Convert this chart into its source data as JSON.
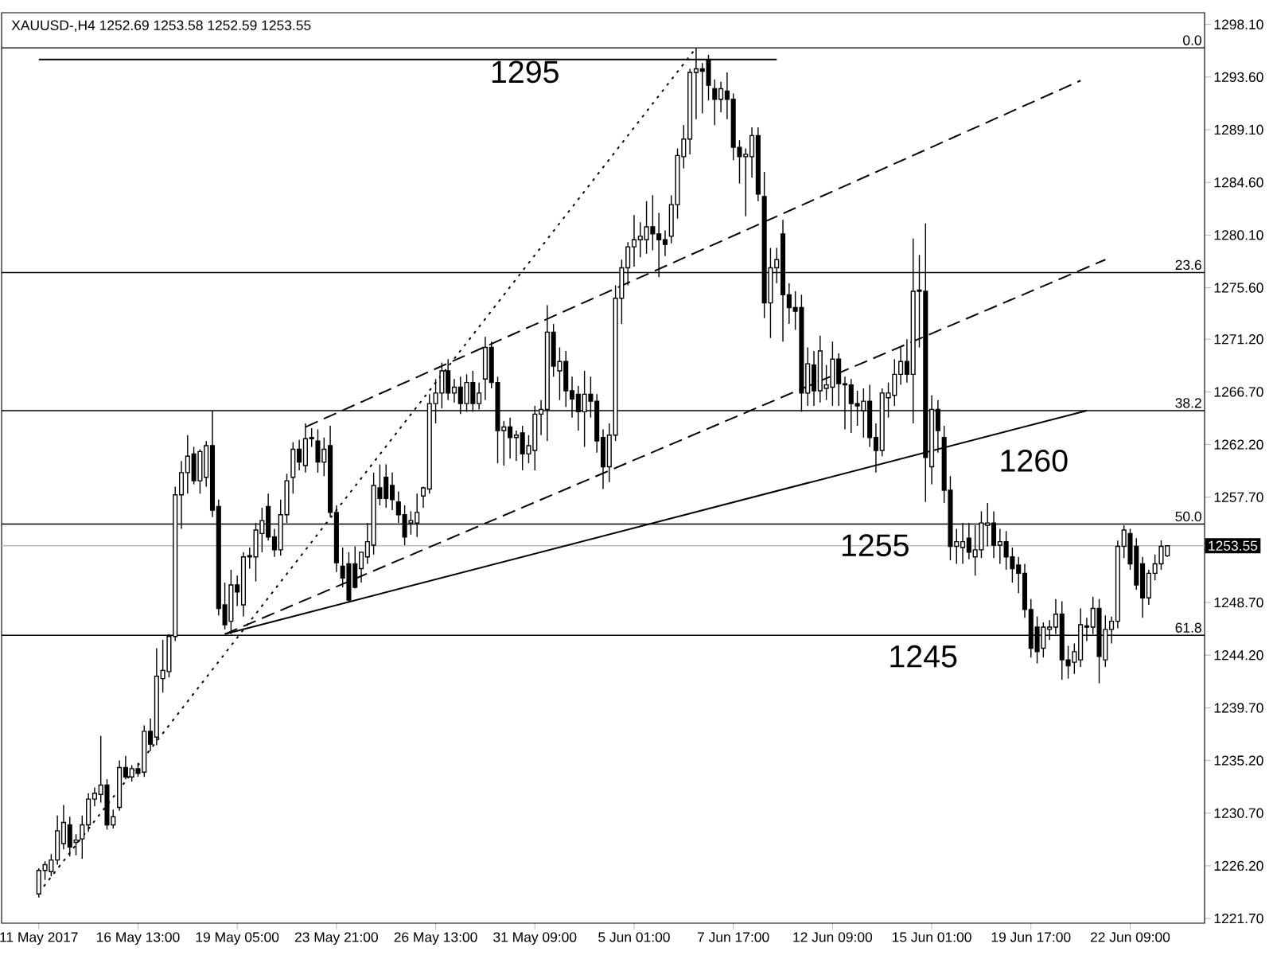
{
  "chart_data": {
    "type": "candlestick",
    "title": "XAUUSD-,H4  1252.69 1253.58 1252.59 1253.55",
    "color": "#000000",
    "ylim": [
      1221.3,
      1299.1
    ],
    "categories": [
      "11 May 2017",
      null,
      null,
      null,
      null,
      null,
      null,
      null,
      null,
      null,
      null,
      null,
      null,
      null,
      null,
      null,
      "16 May 13:00",
      null,
      null,
      null,
      null,
      null,
      null,
      null,
      null,
      null,
      null,
      null,
      null,
      null,
      null,
      null,
      "19 May 05:00",
      null,
      null,
      null,
      null,
      null,
      null,
      null,
      null,
      null,
      null,
      null,
      null,
      null,
      null,
      null,
      "23 May 21:00",
      null,
      null,
      null,
      null,
      null,
      null,
      null,
      null,
      null,
      null,
      null,
      null,
      null,
      null,
      null,
      "26 May 13:00",
      null,
      null,
      null,
      null,
      null,
      null,
      null,
      null,
      null,
      null,
      null,
      null,
      null,
      null,
      null,
      "31 May 09:00",
      null,
      null,
      null,
      null,
      null,
      null,
      null,
      null,
      null,
      null,
      null,
      null,
      null,
      null,
      null,
      "5 Jun 01:00",
      null,
      null,
      null,
      null,
      null,
      null,
      null,
      null,
      null,
      null,
      null,
      null,
      null,
      null,
      null,
      "7 Jun 17:00",
      null,
      null,
      null,
      null,
      null,
      null,
      null,
      null,
      null,
      null,
      null,
      null,
      null,
      null,
      null,
      "12 Jun 09:00",
      null,
      null,
      null,
      null,
      null,
      null,
      null,
      null,
      null,
      null,
      null,
      null,
      null,
      null,
      null,
      "15 Jun 01:00",
      null,
      null,
      null,
      null,
      null,
      null,
      null,
      null,
      null,
      null,
      null,
      null,
      null,
      null,
      null,
      "19 Jun 17:00",
      null,
      null,
      null,
      null,
      null,
      null,
      null,
      null,
      null,
      null,
      null,
      null,
      null,
      null,
      null,
      "22 Jun 09:00",
      null,
      null,
      null,
      null,
      null,
      null
    ],
    "yticks": [
      {
        "value": 1298.1,
        "label": "1298.10"
      },
      {
        "value": 1293.6,
        "label": "1293.60"
      },
      {
        "value": 1289.1,
        "label": "1289.10"
      },
      {
        "value": 1284.6,
        "label": "1284.60"
      },
      {
        "value": 1280.1,
        "label": "1280.10"
      },
      {
        "value": 1275.6,
        "label": "1275.60"
      },
      {
        "value": 1271.2,
        "label": "1271.20"
      },
      {
        "value": 1266.7,
        "label": "1266.70"
      },
      {
        "value": 1262.2,
        "label": "1262.20"
      },
      {
        "value": 1257.7,
        "label": "1257.70"
      },
      {
        "value": 1248.7,
        "label": "1248.70"
      },
      {
        "value": 1244.2,
        "label": "1244.20"
      },
      {
        "value": 1239.7,
        "label": "1239.70"
      },
      {
        "value": 1235.2,
        "label": "1235.20"
      },
      {
        "value": 1230.7,
        "label": "1230.70"
      },
      {
        "value": 1226.2,
        "label": "1226.20"
      },
      {
        "value": 1221.7,
        "label": "1221.70"
      }
    ],
    "ohlc": [
      [
        1223.8,
        1226.0,
        1223.5,
        1225.8
      ],
      [
        1225.8,
        1226.6,
        1225.0,
        1226.3
      ],
      [
        1225.7,
        1227.2,
        1225.3,
        1226.7
      ],
      [
        1226.7,
        1230.5,
        1226.3,
        1229.2
      ],
      [
        1228.1,
        1231.4,
        1227.6,
        1229.9
      ],
      [
        1229.7,
        1230.4,
        1227.0,
        1227.8
      ],
      [
        1228.2,
        1228.9,
        1227.1,
        1228.4
      ],
      [
        1228.5,
        1230.5,
        1226.8,
        1229.7
      ],
      [
        1229.7,
        1232.4,
        1229.1,
        1231.9
      ],
      [
        1231.9,
        1232.9,
        1231.3,
        1232.4
      ],
      [
        1232.3,
        1237.3,
        1231.6,
        1233.1
      ],
      [
        1233.1,
        1233.6,
        1229.3,
        1229.7
      ],
      [
        1229.7,
        1231.0,
        1229.4,
        1230.4
      ],
      [
        1231.2,
        1235.2,
        1230.9,
        1234.6
      ],
      [
        1234.6,
        1235.6,
        1233.6,
        1233.8
      ],
      [
        1233.8,
        1234.8,
        1233.4,
        1234.5
      ],
      [
        1234.5,
        1235.0,
        1233.8,
        1234.1
      ],
      [
        1234.2,
        1238.2,
        1233.8,
        1237.7
      ],
      [
        1237.7,
        1238.8,
        1236.0,
        1236.6
      ],
      [
        1237.2,
        1244.8,
        1236.5,
        1242.4
      ],
      [
        1242.2,
        1245.5,
        1241.0,
        1242.9
      ],
      [
        1242.8,
        1246.0,
        1242.3,
        1245.8
      ],
      [
        1245.8,
        1258.6,
        1245.4,
        1257.9
      ],
      [
        1257.9,
        1260.8,
        1255.0,
        1259.8
      ],
      [
        1259.8,
        1263.0,
        1258.0,
        1261.2
      ],
      [
        1261.4,
        1262.0,
        1258.8,
        1259.1
      ],
      [
        1259.1,
        1261.8,
        1258.0,
        1261.6
      ],
      [
        1259.4,
        1262.5,
        1258.6,
        1262.1
      ],
      [
        1262.1,
        1265.1,
        1256.0,
        1256.6
      ],
      [
        1256.9,
        1257.5,
        1247.6,
        1248.2
      ],
      [
        1248.5,
        1250.4,
        1246.4,
        1246.8
      ],
      [
        1247.1,
        1251.5,
        1246.0,
        1250.2
      ],
      [
        1250.2,
        1251.0,
        1248.4,
        1249.6
      ],
      [
        1248.5,
        1253.0,
        1247.5,
        1252.6
      ],
      [
        1252.6,
        1253.4,
        1251.6,
        1252.7
      ],
      [
        1252.6,
        1255.5,
        1250.5,
        1254.9
      ],
      [
        1254.6,
        1256.8,
        1253.0,
        1255.7
      ],
      [
        1256.9,
        1258.0,
        1254.0,
        1254.3
      ],
      [
        1254.3,
        1255.0,
        1252.6,
        1253.2
      ],
      [
        1253.2,
        1257.5,
        1252.7,
        1256.2
      ],
      [
        1256.2,
        1259.7,
        1255.5,
        1259.1
      ],
      [
        1259.4,
        1262.4,
        1258.0,
        1261.8
      ],
      [
        1261.8,
        1262.6,
        1260.0,
        1260.7
      ],
      [
        1260.4,
        1264.0,
        1259.8,
        1262.7
      ],
      [
        1262.7,
        1263.6,
        1262.0,
        1262.8
      ],
      [
        1262.5,
        1263.5,
        1259.8,
        1260.7
      ],
      [
        1260.7,
        1262.8,
        1259.5,
        1261.8
      ],
      [
        1262.1,
        1263.8,
        1256.0,
        1256.4
      ],
      [
        1256.4,
        1257.0,
        1251.3,
        1252.1
      ],
      [
        1251.8,
        1253.4,
        1250.0,
        1250.8
      ],
      [
        1252.0,
        1253.0,
        1248.7,
        1248.9
      ],
      [
        1252.0,
        1253.5,
        1249.9,
        1250.0
      ],
      [
        1251.6,
        1253.0,
        1250.4,
        1253.0
      ],
      [
        1252.6,
        1255.5,
        1252.0,
        1253.9
      ],
      [
        1253.6,
        1259.8,
        1252.8,
        1258.7
      ],
      [
        1258.5,
        1260.5,
        1257.0,
        1257.6
      ],
      [
        1259.4,
        1260.5,
        1256.8,
        1257.6
      ],
      [
        1258.7,
        1259.8,
        1256.6,
        1257.5
      ],
      [
        1257.3,
        1258.2,
        1255.5,
        1256.2
      ],
      [
        1256.2,
        1257.0,
        1253.6,
        1254.3
      ],
      [
        1255.5,
        1256.5,
        1254.5,
        1255.7
      ],
      [
        1255.5,
        1258.0,
        1254.3,
        1256.4
      ],
      [
        1257.8,
        1258.6,
        1256.8,
        1258.5
      ],
      [
        1258.4,
        1266.5,
        1258.0,
        1265.7
      ],
      [
        1265.7,
        1267.8,
        1264.0,
        1266.6
      ],
      [
        1266.6,
        1269.2,
        1265.3,
        1268.5
      ],
      [
        1268.5,
        1269.5,
        1266.0,
        1266.6
      ],
      [
        1266.6,
        1267.8,
        1265.8,
        1267.1
      ],
      [
        1267.1,
        1268.0,
        1264.8,
        1265.7
      ],
      [
        1265.7,
        1268.2,
        1265.0,
        1267.5
      ],
      [
        1267.5,
        1268.5,
        1265.0,
        1265.7
      ],
      [
        1265.7,
        1267.5,
        1265.2,
        1266.6
      ],
      [
        1267.8,
        1271.4,
        1266.0,
        1270.5
      ],
      [
        1270.5,
        1271.0,
        1267.0,
        1267.5
      ],
      [
        1267.5,
        1268.0,
        1260.6,
        1263.4
      ],
      [
        1263.4,
        1264.2,
        1260.4,
        1263.7
      ],
      [
        1263.7,
        1264.5,
        1261.0,
        1262.8
      ],
      [
        1262.8,
        1263.4,
        1260.8,
        1263.0
      ],
      [
        1263.2,
        1263.8,
        1260.0,
        1261.4
      ],
      [
        1261.4,
        1263.0,
        1260.6,
        1262.1
      ],
      [
        1261.7,
        1265.5,
        1260.0,
        1264.8
      ],
      [
        1264.8,
        1266.0,
        1263.0,
        1265.2
      ],
      [
        1265.2,
        1274.1,
        1262.5,
        1271.8
      ],
      [
        1271.8,
        1272.5,
        1268.0,
        1268.9
      ],
      [
        1268.5,
        1270.5,
        1266.0,
        1269.3
      ],
      [
        1269.3,
        1270.2,
        1265.4,
        1266.8
      ],
      [
        1266.8,
        1268.0,
        1264.5,
        1266.1
      ],
      [
        1266.5,
        1267.2,
        1263.4,
        1265.0
      ],
      [
        1265.0,
        1268.5,
        1262.0,
        1266.5
      ],
      [
        1266.5,
        1268.0,
        1264.5,
        1265.9
      ],
      [
        1265.9,
        1266.5,
        1261.5,
        1262.5
      ],
      [
        1262.8,
        1263.5,
        1258.4,
        1260.3
      ],
      [
        1260.3,
        1264.0,
        1259.0,
        1263.0
      ],
      [
        1263.0,
        1275.8,
        1262.5,
        1274.7
      ],
      [
        1274.7,
        1278.0,
        1272.5,
        1277.3
      ],
      [
        1277.3,
        1279.5,
        1275.8,
        1279.1
      ],
      [
        1279.1,
        1281.8,
        1277.4,
        1279.7
      ],
      [
        1279.7,
        1281.2,
        1278.2,
        1280.0
      ],
      [
        1279.7,
        1283.0,
        1278.5,
        1280.8
      ],
      [
        1280.8,
        1283.5,
        1278.8,
        1280.2
      ],
      [
        1280.2,
        1282.0,
        1276.5,
        1279.7
      ],
      [
        1279.7,
        1280.5,
        1278.3,
        1279.3
      ],
      [
        1280.0,
        1283.5,
        1279.4,
        1282.7
      ],
      [
        1282.7,
        1287.5,
        1281.5,
        1286.9
      ],
      [
        1286.8,
        1289.5,
        1285.8,
        1288.3
      ],
      [
        1288.3,
        1294.3,
        1287.0,
        1294.0
      ],
      [
        1294.0,
        1296.1,
        1290.0,
        1294.3
      ],
      [
        1294.3,
        1294.8,
        1290.5,
        1294.1
      ],
      [
        1295.1,
        1295.5,
        1291.6,
        1292.9
      ],
      [
        1292.6,
        1293.4,
        1289.5,
        1291.7
      ],
      [
        1291.7,
        1293.2,
        1290.6,
        1292.6
      ],
      [
        1292.4,
        1294.0,
        1290.0,
        1291.7
      ],
      [
        1291.7,
        1292.2,
        1286.5,
        1287.6
      ],
      [
        1287.6,
        1288.2,
        1284.5,
        1286.8
      ],
      [
        1286.8,
        1287.5,
        1281.7,
        1287.0
      ],
      [
        1286.8,
        1289.3,
        1285.0,
        1288.6
      ],
      [
        1288.6,
        1289.3,
        1283.0,
        1283.6
      ],
      [
        1283.4,
        1285.5,
        1273.0,
        1274.3
      ],
      [
        1274.3,
        1279.0,
        1271.3,
        1277.3
      ],
      [
        1277.3,
        1279.0,
        1276.0,
        1278.0
      ],
      [
        1280.2,
        1281.4,
        1271.0,
        1275.0
      ],
      [
        1275.0,
        1276.0,
        1272.5,
        1273.9
      ],
      [
        1273.9,
        1275.3,
        1272.0,
        1273.6
      ],
      [
        1273.9,
        1275.0,
        1265.0,
        1266.6
      ],
      [
        1266.6,
        1270.5,
        1265.5,
        1269.1
      ],
      [
        1269.0,
        1270.2,
        1265.5,
        1266.8
      ],
      [
        1266.8,
        1271.5,
        1265.8,
        1270.2
      ],
      [
        1267.0,
        1269.0,
        1266.0,
        1267.3
      ],
      [
        1267.1,
        1271.0,
        1265.5,
        1269.5
      ],
      [
        1269.5,
        1270.0,
        1265.5,
        1267.4
      ],
      [
        1267.4,
        1268.0,
        1263.5,
        1267.3
      ],
      [
        1267.3,
        1267.8,
        1263.2,
        1265.7
      ],
      [
        1265.7,
        1266.8,
        1263.8,
        1265.5
      ],
      [
        1265.1,
        1267.0,
        1262.8,
        1265.9
      ],
      [
        1265.9,
        1267.3,
        1262.0,
        1262.8
      ],
      [
        1262.8,
        1264.0,
        1259.8,
        1261.7
      ],
      [
        1261.7,
        1267.0,
        1261.2,
        1266.6
      ],
      [
        1266.2,
        1267.5,
        1264.5,
        1266.6
      ],
      [
        1266.4,
        1269.5,
        1265.5,
        1268.2
      ],
      [
        1268.2,
        1270.5,
        1267.3,
        1269.3
      ],
      [
        1269.3,
        1271.2,
        1267.5,
        1268.2
      ],
      [
        1268.2,
        1279.8,
        1264.0,
        1275.3
      ],
      [
        1275.3,
        1278.4,
        1270.5,
        1275.4
      ],
      [
        1275.3,
        1281.1,
        1257.3,
        1261.1
      ],
      [
        1260.3,
        1266.4,
        1258.8,
        1265.2
      ],
      [
        1265.2,
        1266.0,
        1261.5,
        1263.4
      ],
      [
        1262.8,
        1263.8,
        1257.2,
        1258.3
      ],
      [
        1258.3,
        1259.5,
        1252.3,
        1253.5
      ],
      [
        1253.5,
        1255.0,
        1252.0,
        1253.9
      ],
      [
        1253.4,
        1255.5,
        1252.0,
        1253.9
      ],
      [
        1254.2,
        1255.5,
        1252.4,
        1253.0
      ],
      [
        1252.6,
        1255.3,
        1251.0,
        1253.2
      ],
      [
        1253.2,
        1256.5,
        1252.5,
        1255.5
      ],
      [
        1255.3,
        1257.2,
        1253.5,
        1255.5
      ],
      [
        1255.5,
        1256.5,
        1252.5,
        1253.6
      ],
      [
        1253.6,
        1255.0,
        1252.0,
        1253.9
      ],
      [
        1253.9,
        1254.8,
        1251.5,
        1252.6
      ],
      [
        1252.6,
        1253.4,
        1250.4,
        1251.6
      ],
      [
        1251.9,
        1252.6,
        1249.5,
        1251.2
      ],
      [
        1251.2,
        1252.0,
        1247.4,
        1248.1
      ],
      [
        1248.1,
        1249.0,
        1244.0,
        1244.8
      ],
      [
        1246.6,
        1247.5,
        1243.5,
        1244.5
      ],
      [
        1244.8,
        1247.0,
        1244.0,
        1246.6
      ],
      [
        1246.4,
        1247.2,
        1245.5,
        1246.6
      ],
      [
        1246.6,
        1249.0,
        1246.0,
        1247.7
      ],
      [
        1247.7,
        1248.8,
        1242.1,
        1243.8
      ],
      [
        1243.8,
        1245.0,
        1242.2,
        1243.3
      ],
      [
        1243.6,
        1245.2,
        1242.6,
        1244.5
      ],
      [
        1243.8,
        1248.2,
        1243.2,
        1246.8
      ],
      [
        1246.6,
        1247.4,
        1245.4,
        1246.7
      ],
      [
        1246.6,
        1249.2,
        1246.0,
        1248.2
      ],
      [
        1248.2,
        1249.0,
        1241.8,
        1244.1
      ],
      [
        1243.8,
        1247.6,
        1243.2,
        1246.4
      ],
      [
        1246.4,
        1247.5,
        1245.2,
        1247.1
      ],
      [
        1247.1,
        1254.0,
        1246.5,
        1253.5
      ],
      [
        1253.5,
        1255.3,
        1252.5,
        1254.9
      ],
      [
        1254.6,
        1255.0,
        1251.5,
        1252.0
      ],
      [
        1253.5,
        1254.2,
        1249.8,
        1250.2
      ],
      [
        1252.0,
        1252.6,
        1247.4,
        1249.1
      ],
      [
        1249.1,
        1251.5,
        1248.5,
        1251.2
      ],
      [
        1251.2,
        1252.8,
        1250.6,
        1252.0
      ],
      [
        1252.0,
        1254.0,
        1251.5,
        1253.5
      ],
      [
        1252.69,
        1253.58,
        1252.59,
        1253.55
      ]
    ],
    "series": [
      {
        "type": "line",
        "color": "#000000",
        "line_style": "solid",
        "values": [
          1295.1,
          null,
          null,
          null,
          null,
          null,
          null,
          null,
          null,
          null,
          null,
          null,
          null,
          null,
          null,
          null,
          null,
          null,
          null,
          null,
          null,
          null,
          null,
          null,
          null,
          null,
          null,
          null,
          null,
          null,
          null,
          null,
          null,
          null,
          null,
          null,
          null,
          null,
          null,
          null,
          null,
          null,
          null,
          null,
          null,
          null,
          null,
          null,
          null,
          null,
          null,
          null,
          null,
          null,
          null,
          null,
          null,
          null,
          null,
          null,
          null,
          null,
          null,
          null,
          null,
          null,
          null,
          null,
          null,
          null,
          null,
          null,
          null,
          null,
          null,
          null,
          null,
          null,
          null,
          null,
          null,
          null,
          null,
          null,
          null,
          null,
          null,
          null,
          null,
          null,
          null,
          null,
          null,
          null,
          null,
          null,
          null,
          null,
          null,
          null,
          null,
          null,
          null,
          null,
          null,
          null,
          null,
          null,
          null,
          null,
          null,
          null,
          null,
          null,
          null,
          null,
          null,
          null,
          null,
          1295.1,
          null,
          null,
          null,
          null,
          null,
          null,
          null,
          null,
          null,
          null,
          null,
          null,
          null,
          null,
          null,
          null,
          null,
          null,
          null,
          null,
          null,
          null,
          null,
          null,
          null,
          null,
          null,
          null,
          null,
          null,
          null,
          null,
          null,
          null,
          null,
          null,
          null,
          null,
          null,
          null,
          null,
          null,
          null,
          null,
          null,
          null,
          null,
          null,
          null,
          null,
          null,
          null,
          null,
          null,
          null,
          null,
          null,
          null,
          null,
          null,
          null,
          null,
          null
        ]
      },
      {
        "type": "line",
        "color": "#000000",
        "line_style": "solid",
        "values": [
          null,
          null,
          null,
          null,
          null,
          null,
          null,
          null,
          null,
          null,
          null,
          null,
          null,
          null,
          null,
          null,
          null,
          null,
          null,
          null,
          null,
          null,
          null,
          null,
          null,
          null,
          null,
          null,
          null,
          null,
          1246.0,
          null,
          null,
          null,
          null,
          null,
          null,
          null,
          null,
          null,
          null,
          null,
          null,
          null,
          null,
          null,
          null,
          null,
          null,
          null,
          null,
          null,
          null,
          null,
          null,
          null,
          null,
          null,
          null,
          null,
          null,
          null,
          null,
          null,
          null,
          null,
          null,
          null,
          null,
          null,
          null,
          null,
          null,
          null,
          null,
          null,
          null,
          null,
          null,
          null,
          null,
          null,
          null,
          null,
          null,
          null,
          null,
          null,
          null,
          null,
          null,
          null,
          null,
          null,
          null,
          null,
          null,
          null,
          null,
          null,
          null,
          null,
          null,
          null,
          null,
          null,
          null,
          null,
          null,
          null,
          null,
          null,
          null,
          null,
          null,
          null,
          null,
          null,
          null,
          null,
          null,
          null,
          null,
          null,
          null,
          null,
          null,
          null,
          null,
          null,
          null,
          null,
          null,
          null,
          null,
          null,
          null,
          null,
          null,
          null,
          null,
          null,
          null,
          null,
          null,
          null,
          null,
          null,
          null,
          null,
          null,
          null,
          null,
          null,
          null,
          null,
          null,
          null,
          null,
          null,
          null,
          null,
          null,
          null,
          null,
          null,
          null,
          null,
          null,
          1265.1,
          null,
          null,
          null,
          null,
          null,
          null,
          null,
          null,
          null,
          null,
          null,
          null,
          null
        ]
      },
      {
        "type": "line",
        "color": "#000000",
        "line_style": "dashed",
        "values": [
          null,
          null,
          null,
          null,
          null,
          null,
          null,
          null,
          null,
          null,
          null,
          null,
          null,
          null,
          null,
          null,
          null,
          null,
          null,
          null,
          null,
          null,
          null,
          null,
          null,
          null,
          null,
          null,
          null,
          null,
          null,
          null,
          null,
          null,
          null,
          null,
          null,
          null,
          null,
          null,
          null,
          null,
          null,
          1263.7,
          null,
          null,
          null,
          null,
          null,
          null,
          null,
          null,
          null,
          null,
          null,
          null,
          null,
          null,
          null,
          null,
          null,
          null,
          null,
          null,
          null,
          null,
          null,
          null,
          null,
          null,
          null,
          null,
          null,
          null,
          null,
          null,
          null,
          null,
          null,
          null,
          null,
          null,
          null,
          null,
          null,
          null,
          null,
          null,
          null,
          null,
          null,
          null,
          null,
          null,
          null,
          null,
          null,
          null,
          null,
          null,
          null,
          null,
          null,
          null,
          null,
          null,
          null,
          null,
          null,
          null,
          null,
          null,
          null,
          null,
          null,
          null,
          null,
          null,
          null,
          null,
          null,
          null,
          null,
          null,
          null,
          null,
          null,
          null,
          null,
          null,
          null,
          null,
          null,
          null,
          null,
          null,
          null,
          null,
          null,
          null,
          null,
          null,
          null,
          null,
          null,
          null,
          null,
          null,
          null,
          null,
          null,
          null,
          null,
          null,
          null,
          null,
          null,
          null,
          null,
          null,
          null,
          null,
          null,
          null,
          null,
          null,
          null,
          null,
          1293.3,
          null,
          null,
          null,
          null,
          null,
          null,
          null,
          null,
          null,
          null,
          null,
          null,
          null,
          null
        ]
      },
      {
        "type": "line",
        "color": "#000000",
        "line_style": "dashed",
        "values": [
          null,
          null,
          null,
          null,
          null,
          null,
          null,
          null,
          null,
          null,
          null,
          null,
          null,
          null,
          null,
          null,
          null,
          null,
          null,
          null,
          null,
          null,
          null,
          null,
          null,
          null,
          null,
          null,
          null,
          null,
          1246.0,
          null,
          null,
          null,
          null,
          null,
          null,
          null,
          null,
          null,
          null,
          null,
          null,
          null,
          null,
          null,
          null,
          null,
          null,
          null,
          null,
          null,
          null,
          null,
          null,
          null,
          null,
          null,
          null,
          null,
          null,
          null,
          null,
          null,
          null,
          null,
          null,
          null,
          null,
          null,
          null,
          null,
          null,
          null,
          null,
          null,
          null,
          null,
          null,
          null,
          null,
          null,
          null,
          null,
          null,
          null,
          null,
          null,
          null,
          null,
          null,
          null,
          null,
          null,
          null,
          null,
          null,
          null,
          null,
          null,
          null,
          null,
          null,
          null,
          null,
          null,
          null,
          null,
          null,
          null,
          null,
          null,
          null,
          null,
          null,
          null,
          null,
          null,
          null,
          null,
          null,
          null,
          null,
          null,
          null,
          null,
          null,
          null,
          null,
          null,
          null,
          null,
          null,
          null,
          null,
          null,
          null,
          null,
          null,
          null,
          null,
          null,
          null,
          null,
          null,
          null,
          null,
          null,
          null,
          null,
          null,
          null,
          null,
          null,
          null,
          null,
          null,
          null,
          null,
          null,
          null,
          null,
          null,
          null,
          null,
          null,
          null,
          null,
          null,
          null,
          null,
          null,
          1278.0,
          null,
          null,
          null,
          null,
          null,
          null,
          null,
          null,
          null,
          null
        ]
      },
      {
        "type": "line",
        "color": "#000000",
        "line_style": "dotted",
        "values": [
          1223.9,
          null,
          null,
          null,
          null,
          null,
          null,
          null,
          null,
          null,
          null,
          null,
          null,
          null,
          null,
          null,
          null,
          null,
          null,
          null,
          null,
          null,
          null,
          null,
          null,
          null,
          null,
          null,
          null,
          null,
          null,
          null,
          null,
          null,
          null,
          null,
          null,
          null,
          null,
          null,
          null,
          null,
          null,
          null,
          null,
          null,
          null,
          null,
          null,
          null,
          null,
          null,
          null,
          null,
          null,
          null,
          null,
          null,
          null,
          null,
          null,
          null,
          null,
          null,
          null,
          null,
          null,
          null,
          null,
          null,
          null,
          null,
          null,
          null,
          null,
          null,
          null,
          null,
          null,
          null,
          null,
          null,
          null,
          null,
          null,
          null,
          null,
          null,
          null,
          null,
          null,
          null,
          null,
          null,
          null,
          null,
          null,
          null,
          null,
          null,
          null,
          null,
          null,
          null,
          null,
          null,
          1296.1,
          null,
          null,
          null,
          null,
          null,
          null,
          null,
          null,
          null,
          null,
          null,
          null,
          null,
          null,
          null,
          null,
          null,
          null,
          null,
          null,
          null,
          null,
          null,
          null,
          null,
          null,
          null,
          null,
          null,
          null,
          null,
          null,
          null,
          null,
          null,
          null,
          null,
          null,
          null,
          null,
          null,
          null,
          null,
          null,
          null,
          null,
          null,
          null,
          null,
          null,
          null,
          null,
          null,
          null,
          null,
          null,
          null,
          null,
          null,
          null,
          null,
          null,
          null,
          null,
          null,
          null,
          null,
          null,
          null,
          null,
          null,
          null,
          null,
          null,
          null,
          null
        ]
      }
    ],
    "ref_lines": [
      {
        "axis": "y",
        "value": 1296.1
      },
      {
        "axis": "y",
        "value": 1276.9
      },
      {
        "axis": "y",
        "value": 1265.1
      },
      {
        "axis": "y",
        "value": 1255.4
      },
      {
        "axis": "y",
        "value": 1245.9
      },
      {
        "axis": "y",
        "value": 1253.55,
        "label": "1253.55",
        "color": "#c0c0c0"
      }
    ],
    "annotations": [
      {
        "text": "0.0",
        "y": 1296.1
      },
      {
        "text": "23.6",
        "y": 1276.9
      },
      {
        "text": "38.2",
        "y": 1265.1
      },
      {
        "text": "50.0",
        "y": 1255.4
      },
      {
        "text": "61.8",
        "y": 1245.9
      },
      "1295",
      "1260",
      "1255",
      "1245"
    ]
  }
}
